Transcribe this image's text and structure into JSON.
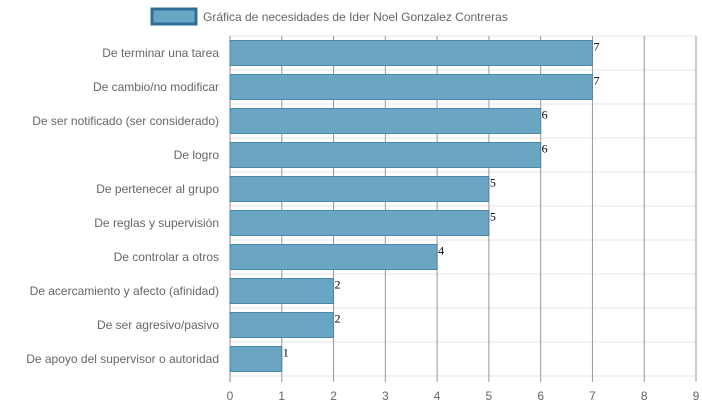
{
  "chart_data": {
    "type": "bar",
    "orientation": "horizontal",
    "title": "",
    "xlabel": "",
    "ylabel": "",
    "xlim": [
      0,
      9
    ],
    "xticks": [
      0,
      1,
      2,
      3,
      4,
      5,
      6,
      7,
      8,
      9
    ],
    "grid": true,
    "legend_position": "top-center",
    "categories": [
      "De terminar una tarea",
      "De cambio/no modificar",
      "De ser notificado (ser considerado)",
      "De logro",
      "De pertenecer al grupo",
      "De reglas y supervisión",
      "De controlar a otros",
      "De acercamiento y afecto (afinidad)",
      "De ser agresivo/pasivo",
      "De apoyo del supervisor o autoridad"
    ],
    "series": [
      {
        "name": "Gráfica de necesidades de Ider Noel Gonzalez Contreras",
        "values": [
          7,
          7,
          6,
          6,
          5,
          5,
          4,
          2,
          2,
          1
        ]
      }
    ],
    "colors": {
      "bar_fill": "#6aa5c4",
      "bar_stroke": "#4a86a8",
      "grid": "#e6e6e6",
      "axis": "#888888",
      "legend_stroke": "#2f6f96"
    }
  }
}
